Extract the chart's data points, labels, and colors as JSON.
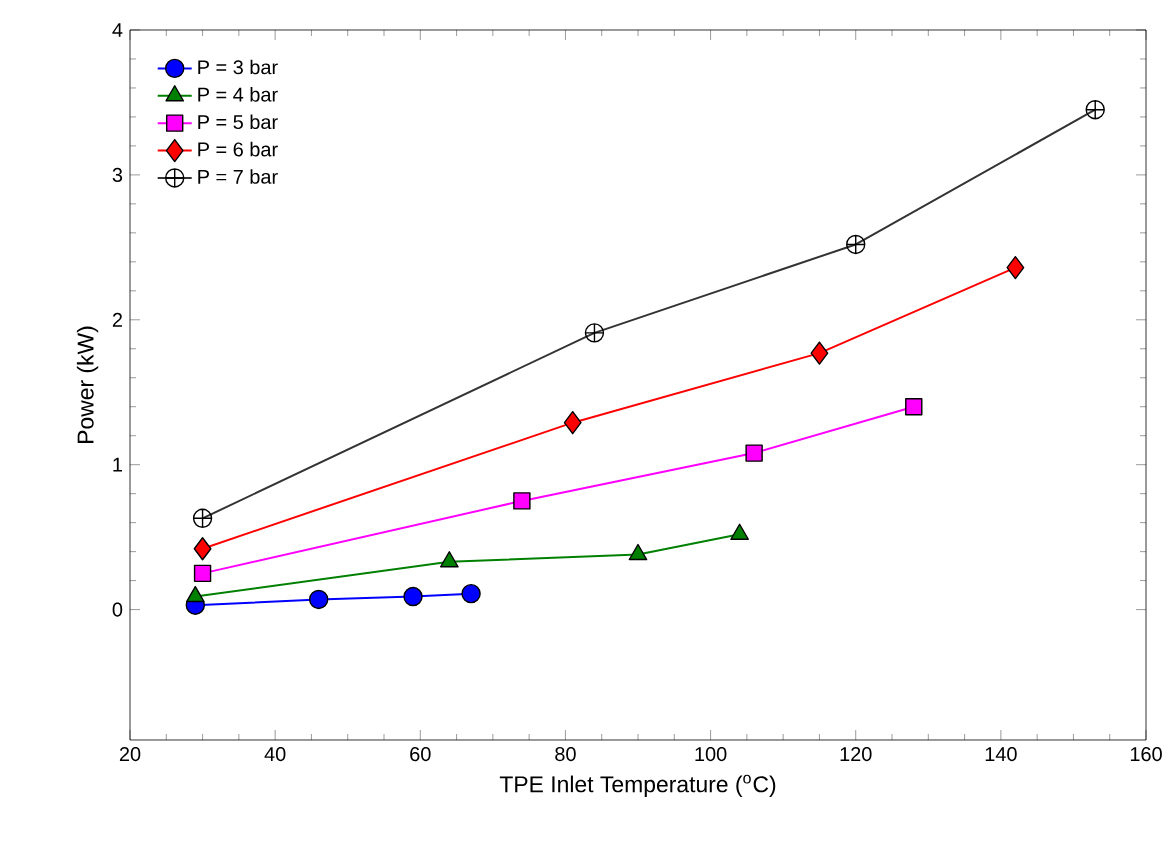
{
  "chart_data": {
    "type": "line",
    "xlabel": "TPE Inlet Temperature ($^{o}$C)",
    "ylabel": "Power (kW)",
    "xlim": [
      20,
      160
    ],
    "xticks": [
      20,
      40,
      60,
      80,
      100,
      120,
      140,
      160
    ],
    "ylim": [
      -0.9,
      4
    ],
    "yticks": [
      0,
      1,
      2,
      3,
      4
    ],
    "legend": "top left",
    "grid": false,
    "series": [
      {
        "name": "P = 3 bar",
        "color": "#0000ff",
        "marker": "circle",
        "x": [
          29,
          46,
          59,
          67
        ],
        "values": [
          0.03,
          0.07,
          0.09,
          0.11
        ]
      },
      {
        "name": "P = 4 bar",
        "color": "#008000",
        "marker": "triangle",
        "x": [
          29,
          64,
          90,
          104
        ],
        "values": [
          0.09,
          0.33,
          0.38,
          0.52
        ]
      },
      {
        "name": "P = 5 bar",
        "color": "#ff00ff",
        "marker": "square",
        "x": [
          30,
          74,
          106,
          128
        ],
        "values": [
          0.25,
          0.75,
          1.08,
          1.4
        ]
      },
      {
        "name": "P = 6 bar",
        "color": "#ff0000",
        "marker": "diamond",
        "x": [
          30,
          81,
          115,
          142
        ],
        "values": [
          0.42,
          1.29,
          1.77,
          2.36
        ]
      },
      {
        "name": "P = 7 bar",
        "color": "#333333",
        "marker": "cross",
        "x": [
          30,
          84,
          120,
          153
        ],
        "values": [
          0.63,
          1.91,
          2.52,
          3.45
        ]
      }
    ]
  }
}
